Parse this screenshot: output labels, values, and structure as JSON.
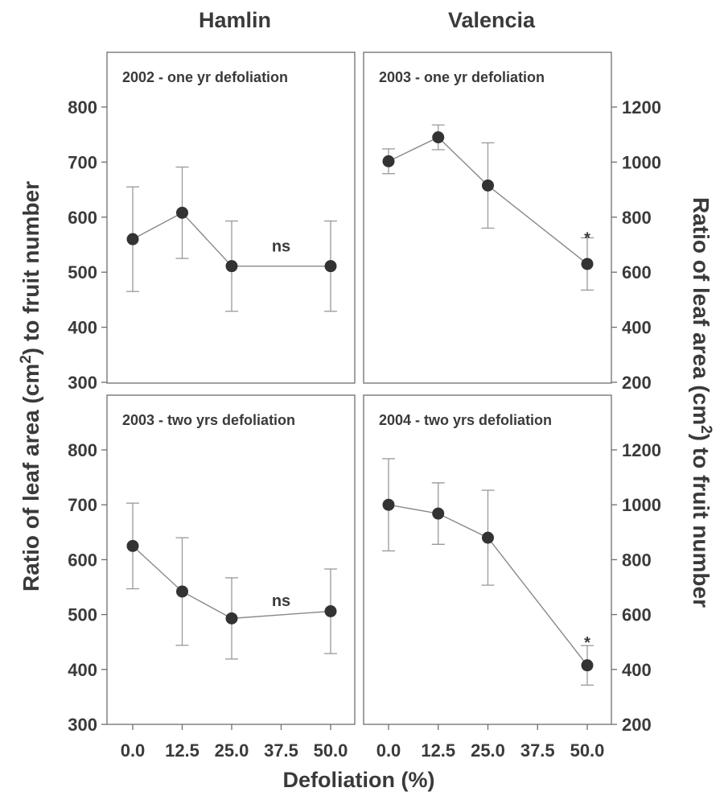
{
  "header": {
    "left_col": "Hamlin",
    "right_col": "Valencia"
  },
  "axes": {
    "y_left_title": "Ratio of leaf area (cm",
    "y_right_title": "Ratio of leaf area (cm",
    "y_title_sup": "2",
    "y_title_tail": ") to fruit number",
    "x_title": "Defoliation (%)"
  },
  "colors": {
    "marker": "#333333",
    "line": "#888888",
    "errorbar": "#999999",
    "text": "#3a3a3a"
  },
  "chart_data": [
    {
      "type": "line",
      "title": "2002 - one yr defoliation",
      "column": "Hamlin",
      "x_ticks": [
        0.0,
        12.5,
        25.0,
        37.5,
        50.0
      ],
      "x_tick_labels": [
        "0.0",
        "12.5",
        "25.0",
        "37.5",
        "50.0"
      ],
      "x": [
        0,
        12.5,
        25,
        50
      ],
      "y": [
        560,
        608,
        511,
        511
      ],
      "yerr": [
        95,
        83,
        82,
        82
      ],
      "ylim": [
        300,
        800
      ],
      "y_ticks": [
        300,
        400,
        500,
        600,
        700,
        800
      ],
      "annotations": [
        {
          "text": "ns",
          "x": 37.5,
          "y": 548
        }
      ]
    },
    {
      "type": "line",
      "title": "2003 - one yr defoliation",
      "column": "Valencia",
      "x_ticks": [
        0.0,
        12.5,
        25.0,
        37.5,
        50.0
      ],
      "x_tick_labels": [
        "0.0",
        "12.5",
        "25.0",
        "37.5",
        "50.0"
      ],
      "x": [
        0,
        12.5,
        25,
        50
      ],
      "y": [
        1003,
        1090,
        915,
        630
      ],
      "yerr": [
        45,
        45,
        155,
        95
      ],
      "ylim": [
        200,
        1200
      ],
      "y_ticks": [
        200,
        400,
        600,
        800,
        1000,
        1200
      ],
      "annotations": [
        {
          "text": "*",
          "x": 50,
          "y": 745
        }
      ]
    },
    {
      "type": "line",
      "title": "2003 - two yrs defoliation",
      "column": "Hamlin",
      "x_ticks": [
        0.0,
        12.5,
        25.0,
        37.5,
        50.0
      ],
      "x_tick_labels": [
        "0.0",
        "12.5",
        "25.0",
        "37.5",
        "50.0"
      ],
      "x": [
        0,
        12.5,
        25,
        50
      ],
      "y": [
        625,
        542,
        493,
        506
      ],
      "yerr": [
        78,
        98,
        74,
        77
      ],
      "ylim": [
        300,
        800
      ],
      "y_ticks": [
        300,
        400,
        500,
        600,
        700,
        800
      ],
      "annotations": [
        {
          "text": "ns",
          "x": 37.5,
          "y": 526
        }
      ]
    },
    {
      "type": "line",
      "title": "2004 - two yrs defoliation",
      "column": "Valencia",
      "x_ticks": [
        0.0,
        12.5,
        25.0,
        37.5,
        50.0
      ],
      "x_tick_labels": [
        "0.0",
        "12.5",
        "25.0",
        "37.5",
        "50.0"
      ],
      "x": [
        0,
        12.5,
        25,
        50
      ],
      "y": [
        1000,
        968,
        880,
        415
      ],
      "yerr": [
        168,
        112,
        173,
        72
      ],
      "ylim": [
        200,
        1200
      ],
      "y_ticks": [
        200,
        400,
        600,
        800,
        1000,
        1200
      ],
      "annotations": [
        {
          "text": "*",
          "x": 50,
          "y": 520
        }
      ]
    }
  ]
}
